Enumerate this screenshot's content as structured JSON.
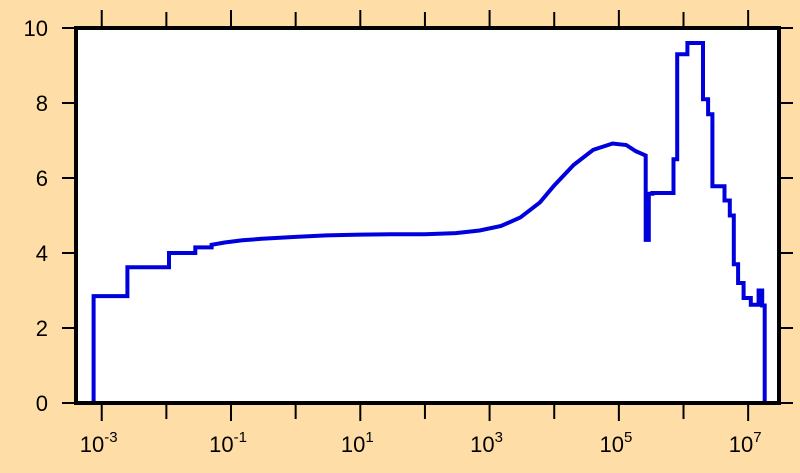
{
  "colors": {
    "background": "#FFDDA6",
    "plot_area": "#FFFFFF",
    "series": "#0000DD",
    "axis": "#000000"
  },
  "chart_data": {
    "type": "line",
    "step": true,
    "title": "",
    "xlabel": "",
    "ylabel": "",
    "xscale": "log",
    "xlim": [
      0.0004,
      30000000
    ],
    "ylim": [
      0,
      10
    ],
    "grid": false,
    "x_ticks": [
      {
        "base": "10",
        "exp": "-3",
        "value": 0.001
      },
      {
        "base": "10",
        "exp": "-1",
        "value": 0.1
      },
      {
        "base": "10",
        "exp": "1",
        "value": 10
      },
      {
        "base": "10",
        "exp": "3",
        "value": 1000
      },
      {
        "base": "10",
        "exp": "5",
        "value": 100000
      },
      {
        "base": "10",
        "exp": "7",
        "value": 10000000
      }
    ],
    "y_ticks": [
      {
        "label": "0",
        "value": 0
      },
      {
        "label": "2",
        "value": 2
      },
      {
        "label": "4",
        "value": 4
      },
      {
        "label": "6",
        "value": 6
      },
      {
        "label": "8",
        "value": 8
      },
      {
        "label": "10",
        "value": 10
      }
    ],
    "series": [
      {
        "points": [
          [
            0.00075,
            0
          ],
          [
            0.00075,
            2.85
          ],
          [
            0.0025,
            2.85
          ],
          [
            0.0025,
            3.62
          ],
          [
            0.011,
            3.62
          ],
          [
            0.011,
            4.0
          ],
          [
            0.028,
            4.0
          ],
          [
            0.028,
            4.15
          ],
          [
            0.05,
            4.15
          ],
          [
            0.05,
            4.22
          ],
          [
            0.08,
            4.28
          ],
          [
            0.15,
            4.34
          ],
          [
            0.3,
            4.38
          ],
          [
            1,
            4.43
          ],
          [
            3,
            4.47
          ],
          [
            10,
            4.49
          ],
          [
            30,
            4.5
          ],
          [
            100,
            4.5
          ],
          [
            300,
            4.53
          ],
          [
            700,
            4.6
          ],
          [
            1500,
            4.72
          ],
          [
            3000,
            4.95
          ],
          [
            6000,
            5.35
          ],
          [
            10000,
            5.8
          ],
          [
            20000,
            6.35
          ],
          [
            40000,
            6.75
          ],
          [
            80000,
            6.92
          ],
          [
            130000,
            6.88
          ],
          [
            180000,
            6.72
          ],
          [
            260000,
            6.6
          ],
          [
            260000,
            4.35
          ],
          [
            290000,
            4.35
          ],
          [
            290000,
            5.58
          ],
          [
            330000,
            5.58
          ],
          [
            330000,
            5.6
          ],
          [
            700000,
            5.6
          ],
          [
            700000,
            6.5
          ],
          [
            800000,
            6.5
          ],
          [
            800000,
            9.3
          ],
          [
            1150000,
            9.3
          ],
          [
            1150000,
            9.6
          ],
          [
            2000000,
            9.6
          ],
          [
            2000000,
            8.1
          ],
          [
            2400000,
            8.1
          ],
          [
            2400000,
            7.7
          ],
          [
            2800000,
            7.7
          ],
          [
            2800000,
            5.78
          ],
          [
            4300000,
            5.78
          ],
          [
            4300000,
            5.4
          ],
          [
            5200000,
            5.4
          ],
          [
            5200000,
            5.0
          ],
          [
            6000000,
            5.0
          ],
          [
            6000000,
            3.7
          ],
          [
            7000000,
            3.7
          ],
          [
            7000000,
            3.2
          ],
          [
            8500000,
            3.2
          ],
          [
            8500000,
            2.8
          ],
          [
            11000000,
            2.8
          ],
          [
            11000000,
            2.62
          ],
          [
            14500000,
            2.62
          ],
          [
            14500000,
            3.0
          ],
          [
            16500000,
            3.0
          ],
          [
            16500000,
            2.6
          ],
          [
            18000000,
            2.6
          ],
          [
            18000000,
            0
          ]
        ]
      }
    ]
  }
}
